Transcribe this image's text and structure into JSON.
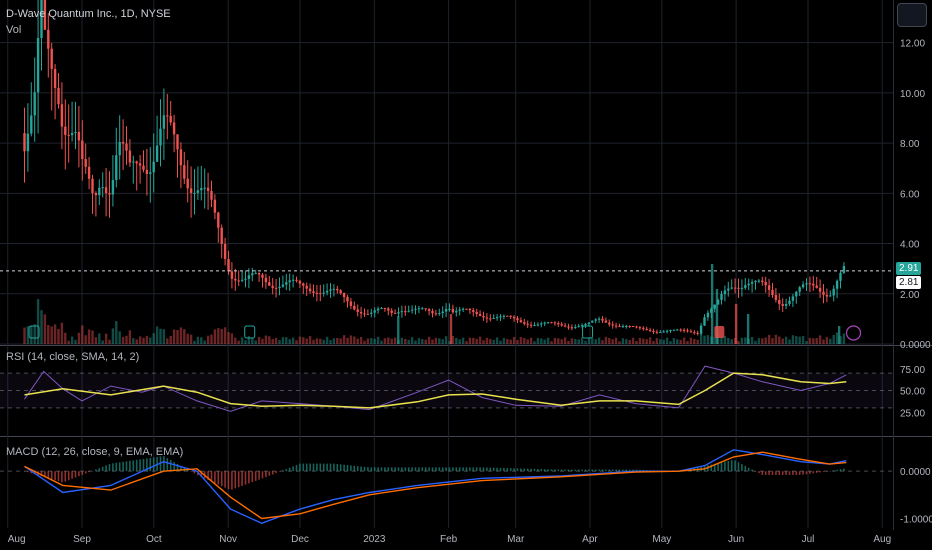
{
  "header": {
    "symbol_line": "D-Wave Quantum Inc., 1D, NYSE",
    "vol_label": "Vol"
  },
  "price_tags": {
    "last": "2.91",
    "prev": "2.81"
  },
  "rsi": {
    "label": "RSI (14, close, SMA, 14, 2)",
    "ticks": [
      "75.00",
      "50.00",
      "25.00"
    ]
  },
  "macd": {
    "label": "MACD (12, 26, close, 9, EMA, EMA)",
    "ticks": [
      "0.0000",
      "-1.0000"
    ]
  },
  "colors": {
    "up": "#26a69a",
    "down": "#ef5350",
    "rsi_line": "#7e57c2",
    "rsi_ma": "#e9e24f",
    "macd_line": "#2962ff",
    "signal_line": "#ff6d00",
    "last_price_bg": "#26a69a"
  },
  "chart_data": [
    {
      "type": "line",
      "title": "D-Wave Quantum Inc., 1D, NYSE",
      "ylabel": "",
      "x_ticks": [
        "Aug",
        "Sep",
        "Oct",
        "Nov",
        "Dec",
        "2023",
        "Feb",
        "Mar",
        "Apr",
        "May",
        "Jun",
        "Jul",
        "Aug"
      ],
      "y_ticks": [
        "12.00",
        "10.00",
        "8.00",
        "6.00",
        "4.00",
        "2.00",
        "0.0000"
      ],
      "ylim": [
        0,
        13.5
      ],
      "series": [
        {
          "name": "Close",
          "x": [
            "2022-08-08",
            "2022-08-10",
            "2022-08-12",
            "2022-08-15",
            "2022-08-16",
            "2022-08-18",
            "2022-08-22",
            "2022-08-24",
            "2022-08-26",
            "2022-08-30",
            "2022-09-01",
            "2022-09-06",
            "2022-09-09",
            "2022-09-13",
            "2022-09-16",
            "2022-09-21",
            "2022-09-26",
            "2022-09-30",
            "2022-10-05",
            "2022-10-11",
            "2022-10-14",
            "2022-10-19",
            "2022-10-24",
            "2022-10-28",
            "2022-11-02",
            "2022-11-08",
            "2022-11-15",
            "2022-11-22",
            "2022-12-01",
            "2022-12-08",
            "2022-12-15",
            "2022-12-22",
            "2022-12-30",
            "2023-01-05",
            "2023-01-09",
            "2023-01-12",
            "2023-01-19",
            "2023-01-26",
            "2023-02-01",
            "2023-02-02",
            "2023-02-08",
            "2023-02-15",
            "2023-02-22",
            "2023-03-01",
            "2023-03-10",
            "2023-03-20",
            "2023-03-31",
            "2023-04-05",
            "2023-04-12",
            "2023-04-20",
            "2023-04-28",
            "2023-05-08",
            "2023-05-16",
            "2023-05-19",
            "2023-05-24",
            "2023-05-26",
            "2023-05-31",
            "2023-06-05",
            "2023-06-12",
            "2023-06-20",
            "2023-06-28",
            "2023-07-05",
            "2023-07-10",
            "2023-07-14",
            "2023-07-17"
          ],
          "values": [
            8.4,
            8.8,
            9.0,
            12.5,
            11.5,
            11.2,
            10.8,
            9.6,
            9.0,
            7.8,
            6.6,
            5.8,
            7.2,
            6.4,
            7.6,
            6.6,
            7.8,
            7.6,
            8.3,
            7.6,
            7.2,
            6.4,
            5.4,
            4.4,
            3.0,
            2.45,
            2.6,
            2.5,
            2.2,
            2.3,
            2.0,
            1.6,
            1.2,
            1.3,
            1.25,
            1.5,
            1.3,
            1.2,
            1.65,
            1.3,
            1.25,
            1.2,
            1.05,
            0.95,
            0.8,
            0.75,
            0.75,
            0.95,
            0.8,
            0.6,
            0.55,
            0.5,
            0.5,
            1.2,
            1.5,
            1.8,
            2.4,
            2.6,
            2.2,
            1.7,
            2.1,
            2.3,
            2.1,
            2.6,
            2.91
          ]
        }
      ]
    },
    {
      "type": "line",
      "title": "RSI (14, close, SMA, 14, 2)",
      "ylim": [
        0,
        100
      ],
      "series": [
        {
          "name": "RSI",
          "x": [
            "2022-08-08",
            "2022-08-16",
            "2022-08-24",
            "2022-09-01",
            "2022-09-13",
            "2022-09-26",
            "2022-10-05",
            "2022-10-19",
            "2022-11-02",
            "2022-11-15",
            "2022-12-01",
            "2022-12-15",
            "2022-12-30",
            "2023-01-09",
            "2023-01-19",
            "2023-02-01",
            "2023-02-15",
            "2023-03-01",
            "2023-03-20",
            "2023-04-05",
            "2023-04-20",
            "2023-05-08",
            "2023-05-19",
            "2023-05-31",
            "2023-06-12",
            "2023-06-28",
            "2023-07-10",
            "2023-07-17"
          ],
          "values": [
            40,
            72,
            52,
            38,
            55,
            48,
            55,
            38,
            26,
            38,
            35,
            32,
            28,
            38,
            48,
            62,
            42,
            33,
            32,
            45,
            35,
            30,
            78,
            70,
            60,
            50,
            58,
            68
          ]
        },
        {
          "name": "RSI-based MA",
          "x": [
            "2022-08-08",
            "2022-08-24",
            "2022-09-13",
            "2022-10-05",
            "2022-10-19",
            "2022-11-02",
            "2022-11-15",
            "2022-12-01",
            "2022-12-15",
            "2022-12-30",
            "2023-01-19",
            "2023-02-01",
            "2023-02-15",
            "2023-03-01",
            "2023-03-20",
            "2023-04-05",
            "2023-04-20",
            "2023-05-08",
            "2023-05-19",
            "2023-05-31",
            "2023-06-12",
            "2023-06-28",
            "2023-07-10",
            "2023-07-17"
          ],
          "values": [
            45,
            52,
            45,
            55,
            48,
            35,
            32,
            33,
            32,
            30,
            37,
            45,
            46,
            40,
            33,
            38,
            38,
            34,
            50,
            70,
            68,
            60,
            58,
            60
          ]
        }
      ]
    },
    {
      "type": "line",
      "title": "MACD (12, 26, close, 9, EMA, EMA)",
      "ylim": [
        -1.2,
        0.7
      ],
      "series": [
        {
          "name": "MACD",
          "x": [
            "2022-08-08",
            "2022-08-24",
            "2022-09-13",
            "2022-10-05",
            "2022-10-19",
            "2022-11-02",
            "2022-11-15",
            "2022-12-01",
            "2022-12-15",
            "2022-12-30",
            "2023-01-19",
            "2023-02-15",
            "2023-03-20",
            "2023-04-20",
            "2023-05-08",
            "2023-05-19",
            "2023-05-31",
            "2023-06-12",
            "2023-06-28",
            "2023-07-10",
            "2023-07-17"
          ],
          "values": [
            0.1,
            -0.45,
            -0.3,
            0.2,
            0.0,
            -0.8,
            -1.1,
            -0.8,
            -0.6,
            -0.45,
            -0.3,
            -0.15,
            -0.1,
            0.0,
            0.0,
            0.12,
            0.45,
            0.35,
            0.2,
            0.15,
            0.22
          ]
        },
        {
          "name": "Signal",
          "x": [
            "2022-08-08",
            "2022-08-24",
            "2022-09-13",
            "2022-10-05",
            "2022-10-19",
            "2022-11-02",
            "2022-11-15",
            "2022-12-01",
            "2022-12-15",
            "2022-12-30",
            "2023-01-19",
            "2023-02-15",
            "2023-03-20",
            "2023-04-20",
            "2023-05-08",
            "2023-05-19",
            "2023-05-31",
            "2023-06-12",
            "2023-06-28",
            "2023-07-10",
            "2023-07-17"
          ],
          "values": [
            0.1,
            -0.3,
            -0.4,
            0.0,
            0.05,
            -0.55,
            -1.0,
            -0.9,
            -0.7,
            -0.5,
            -0.35,
            -0.2,
            -0.12,
            -0.02,
            0.0,
            0.05,
            0.3,
            0.4,
            0.25,
            0.15,
            0.18
          ]
        }
      ]
    }
  ]
}
